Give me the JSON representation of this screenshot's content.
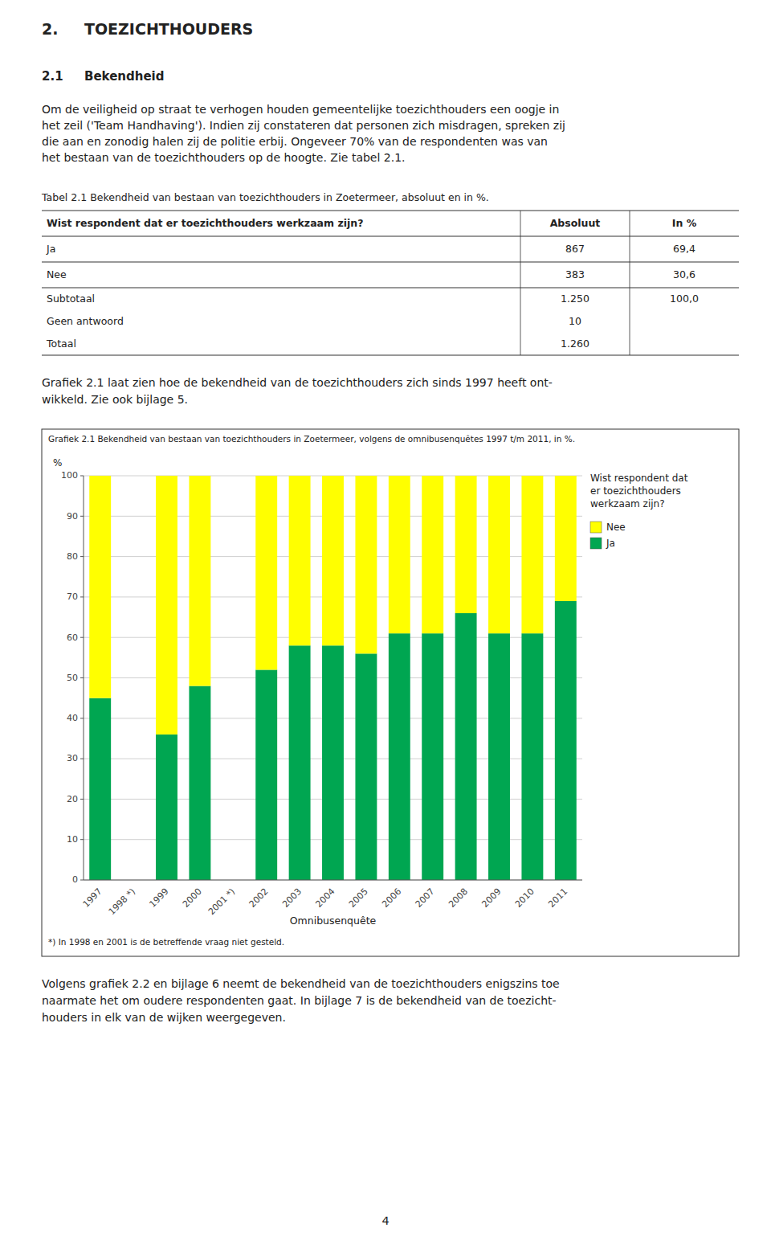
{
  "chapter_number": "2.",
  "chapter_title": "TOEZICHTHOUDERS",
  "section_number": "2.1",
  "section_title": "Bekendheid",
  "body_text_1": [
    "Om de veiligheid op straat te verhogen houden gemeentelijke toezichthouders een oogje in",
    "het zeil ('Team Handhaving'). Indien zij constateren dat personen zich misdragen, spreken zij",
    "die aan en zonodig halen zij de politie erbij. Ongeveer 70% van de respondenten was van",
    "het bestaan van de toezichthouders op de hoogte. Zie tabel 2.1."
  ],
  "table": {
    "caption": "Tabel 2.1 Bekendheid van bestaan van toezichthouders in Zoetermeer, absoluut en in %.",
    "header": [
      "Wist respondent dat er toezichthouders werkzaam zijn?",
      "Absoluut",
      "In %"
    ],
    "rows": [
      [
        "Ja",
        "867",
        "69,4"
      ],
      [
        "Nee",
        "383",
        "30,6"
      ],
      [
        "Subtotaal",
        "1.250",
        "100,0"
      ],
      [
        "Geen antwoord",
        "10",
        null
      ],
      [
        "Totaal",
        "1.260",
        null
      ]
    ]
  },
  "body_text_2": [
    "Grafiek 2.1 laat zien hoe de bekendheid van de toezichthouders zich sinds 1997 heeft ont-",
    "wikkeld. Zie ook bijlage 5."
  ],
  "chart_data": {
    "type": "bar",
    "stacked": true,
    "title": "Grafiek 2.1  Bekendheid van bestaan van toezichthouders in Zoetermeer, volgens de omnibusenquêtes 1997 t/m 2011, in %.",
    "ylabel": "%",
    "xlabel": "Omnibusenquête",
    "note": "*) In 1998 en 2001 is de betreffende vraag niet gesteld.",
    "legend_title": [
      "Wist respondent dat",
      "er toezichthouders",
      "werkzaam zijn?"
    ],
    "legend": "right",
    "categories": [
      "1997",
      "1998 *)",
      "1999",
      "2000",
      "2001 *)",
      "2002",
      "2003",
      "2004",
      "2005",
      "2006",
      "2007",
      "2008",
      "2009",
      "2010",
      "2011"
    ],
    "series": [
      {
        "name": "Ja",
        "color": "#00A651",
        "values": [
          45,
          0,
          36,
          48,
          0,
          52,
          58,
          58,
          56,
          61,
          61,
          66,
          61,
          61,
          69
        ]
      },
      {
        "name": "Nee",
        "color": "#FFFF00",
        "values": [
          55,
          0,
          64,
          52,
          0,
          48,
          42,
          42,
          44,
          39,
          39,
          34,
          39,
          39,
          31
        ]
      }
    ],
    "ylim": [
      0,
      100
    ],
    "yticks": [
      0,
      10,
      20,
      30,
      40,
      50,
      60,
      70,
      80,
      90,
      100
    ],
    "grid": true
  },
  "body_text_3": [
    "Volgens grafiek 2.2 en bijlage 6 neemt de bekendheid van de toezichthouders enigszins toe",
    "naarmate het om oudere respondenten gaat. In bijlage 7 is de bekendheid van de toezicht-",
    "houders in elk van de wijken weergegeven."
  ],
  "page_number": "4"
}
